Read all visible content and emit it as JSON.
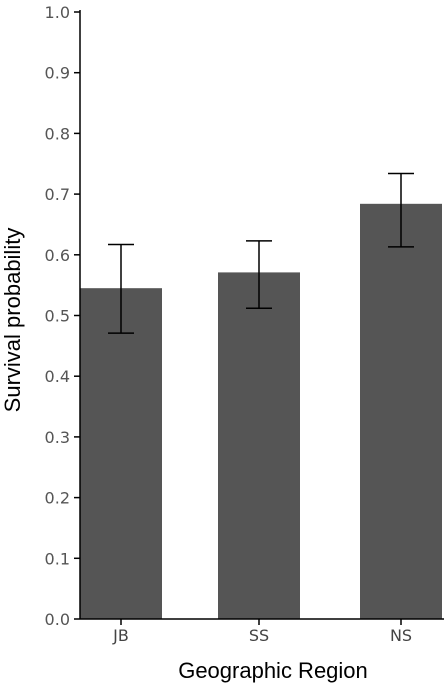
{
  "chart_data": {
    "type": "bar",
    "title": "",
    "xlabel": "Geographic Region",
    "ylabel": "Survival probability",
    "categories": [
      "JB",
      "SS",
      "NS"
    ],
    "values": [
      0.545,
      0.571,
      0.684
    ],
    "error_low": [
      0.471,
      0.512,
      0.613
    ],
    "error_high": [
      0.617,
      0.623,
      0.734
    ],
    "ylim": [
      0.0,
      1.0
    ],
    "yticks": [
      "0.0",
      "0.1",
      "0.2",
      "0.3",
      "0.4",
      "0.5",
      "0.6",
      "0.7",
      "0.8",
      "0.9",
      "1.0"
    ],
    "grid": false,
    "bar_color": "#555555",
    "error_bar_color": "#000000"
  }
}
